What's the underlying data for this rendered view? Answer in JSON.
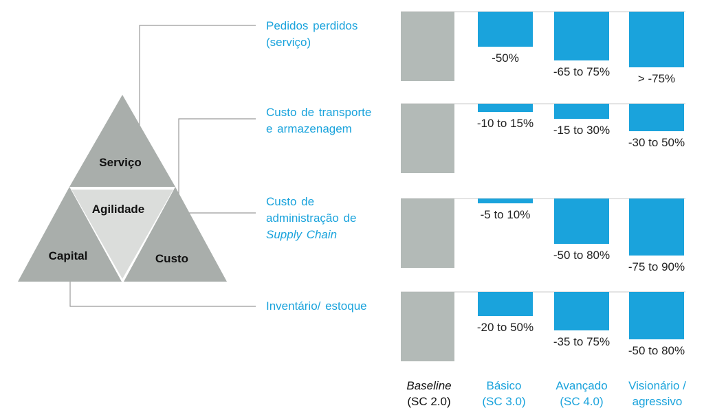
{
  "triangle": {
    "top": "Serviço",
    "center": "Agilidade",
    "left": "Capital",
    "right": "Custo"
  },
  "colors": {
    "baseline_bar": "#b3bab7",
    "improvement_bar": "#1aa3dc",
    "label_blue": "#1aa3dc",
    "triangle_dark": "#a9aeab",
    "triangle_light": "#dbdddb",
    "connector": "#9a9a9a"
  },
  "rows": [
    {
      "label_lines": [
        "Pedidos perdidos",
        "(serviço)"
      ],
      "italic_line": "",
      "values": [
        {
          "label": "",
          "fraction": 1.0
        },
        {
          "label": "-50%",
          "fraction": 0.5
        },
        {
          "label": "-65 to 75%",
          "fraction": 0.7
        },
        {
          "label": "> -75%",
          "fraction": 0.8
        }
      ]
    },
    {
      "label_lines": [
        "Custo de transporte",
        "e armazenagem"
      ],
      "italic_line": "",
      "values": [
        {
          "label": "",
          "fraction": 1.0
        },
        {
          "label": "-10 to 15%",
          "fraction": 0.12
        },
        {
          "label": "-15 to 30%",
          "fraction": 0.22
        },
        {
          "label": "-30 to 50%",
          "fraction": 0.4
        }
      ]
    },
    {
      "label_lines": [
        "Custo de",
        "administração de"
      ],
      "italic_line": "Supply Chain",
      "values": [
        {
          "label": "",
          "fraction": 1.0
        },
        {
          "label": "-5 to 10%",
          "fraction": 0.07
        },
        {
          "label": "-50 to 80%",
          "fraction": 0.65
        },
        {
          "label": "-75 to 90%",
          "fraction": 0.82
        }
      ]
    },
    {
      "label_lines": [
        "Inventário/ estoque"
      ],
      "italic_line": "",
      "values": [
        {
          "label": "",
          "fraction": 1.0
        },
        {
          "label": "-20 to 50%",
          "fraction": 0.35
        },
        {
          "label": "-35 to 75%",
          "fraction": 0.55
        },
        {
          "label": "-50 to 80%",
          "fraction": 0.68
        }
      ]
    }
  ],
  "categories": [
    {
      "line1": "Baseline",
      "line2": "(SC 2.0)",
      "italic": true
    },
    {
      "line1": "Básico",
      "line2": "(SC 3.0)",
      "italic": false
    },
    {
      "line1": "Avançado",
      "line2": "(SC 4.0)",
      "italic": false
    },
    {
      "line1": "Visionário /",
      "line2": "agressivo",
      "italic": false
    }
  ]
}
